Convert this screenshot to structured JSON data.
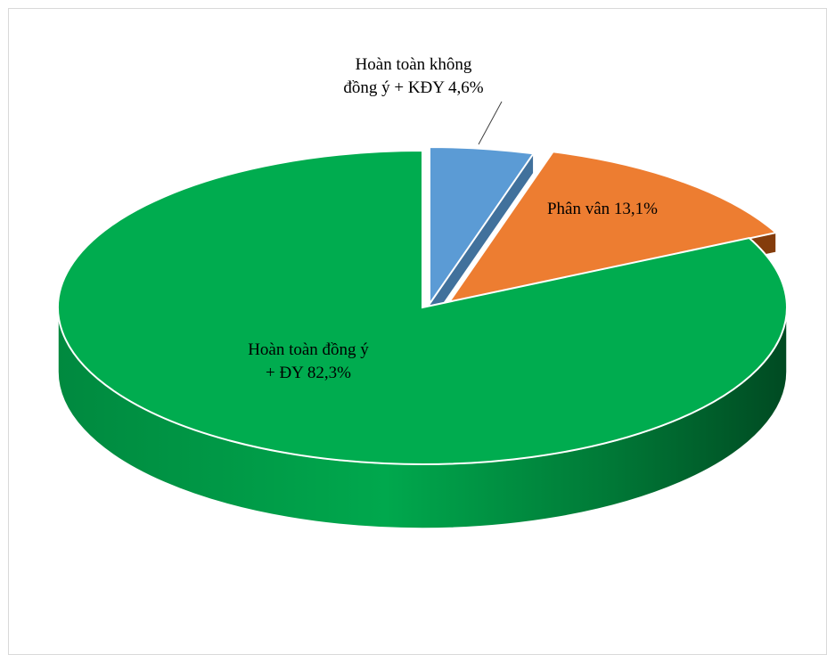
{
  "chart_data": {
    "type": "pie",
    "style": "3d-exploded",
    "slices": [
      {
        "label": "Hoàn toàn không đồng ý + KĐY",
        "label_lines": [
          "Hoàn toàn không",
          "đồng ý + KĐY 4,6%"
        ],
        "value": 4.6,
        "color": "#5b9bd5"
      },
      {
        "label": "Phân vân",
        "label_lines": [
          "Phân vân 13,1%"
        ],
        "value": 13.1,
        "color": "#ed7d31"
      },
      {
        "label": "Hoàn toàn đồng ý + ĐY",
        "label_lines": [
          "Hoàn toàn đồng ý",
          "+ ĐY 82,3%"
        ],
        "value": 82.3,
        "color": "#00ac4f"
      }
    ],
    "legend": "none",
    "title": ""
  }
}
